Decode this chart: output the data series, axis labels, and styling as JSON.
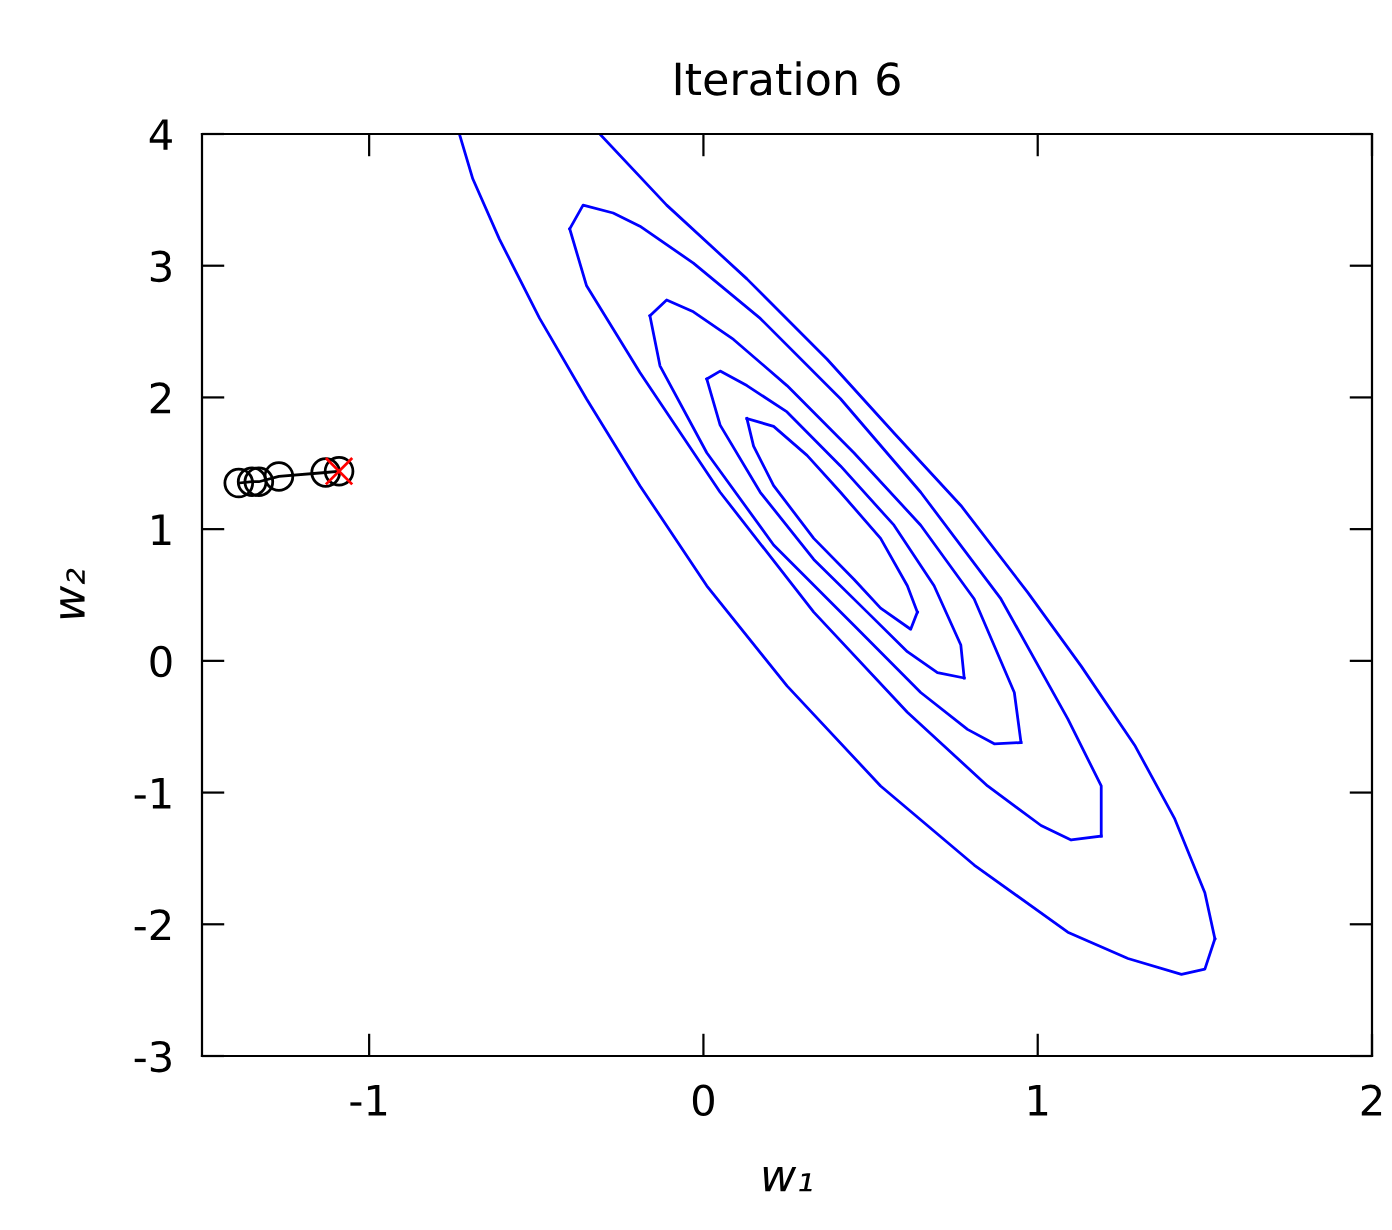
{
  "chart_data": {
    "type": "line",
    "title": "Iteration 6",
    "xlabel": "w₁",
    "ylabel": "w₂",
    "xlim": [
      -1.5,
      2
    ],
    "ylim": [
      -3,
      4
    ],
    "xticks": [
      -1,
      0,
      1,
      2
    ],
    "yticks": [
      -3,
      -2,
      -1,
      0,
      1,
      2,
      3,
      4
    ],
    "grid": false,
    "series": [
      {
        "color": "#0000ff",
        "marker": "none",
        "x": [
          0.13,
          0.21,
          0.31,
          0.41,
          0.53,
          0.61,
          0.64
        ],
        "values": [
          1.84,
          1.78,
          1.56,
          1.28,
          0.93,
          0.57,
          0.37
        ]
      },
      {
        "color": "#0000ff",
        "marker": "none",
        "x": [
          0.64,
          0.62,
          0.53,
          0.45,
          0.33,
          0.21,
          0.15,
          0.13
        ],
        "values": [
          0.37,
          0.24,
          0.4,
          0.62,
          0.93,
          1.33,
          1.63,
          1.84
        ]
      },
      {
        "color": "#0000ff",
        "marker": "none",
        "x": [
          0.01,
          0.05,
          0.13,
          0.25,
          0.41,
          0.57,
          0.69,
          0.77,
          0.78
        ],
        "values": [
          2.14,
          2.2,
          2.09,
          1.89,
          1.48,
          1.03,
          0.57,
          0.12,
          -0.13
        ]
      },
      {
        "color": "#0000ff",
        "marker": "none",
        "x": [
          0.78,
          0.7,
          0.61,
          0.49,
          0.33,
          0.17,
          0.05,
          0.01
        ],
        "values": [
          -0.13,
          -0.09,
          0.07,
          0.37,
          0.77,
          1.28,
          1.79,
          2.14
        ]
      },
      {
        "color": "#0000ff",
        "marker": "none",
        "x": [
          -0.16,
          -0.11,
          -0.03,
          0.09,
          0.25,
          0.45,
          0.65,
          0.81,
          0.93,
          0.95
        ],
        "values": [
          2.62,
          2.74,
          2.65,
          2.44,
          2.09,
          1.58,
          1.03,
          0.47,
          -0.24,
          -0.62
        ]
      },
      {
        "color": "#0000ff",
        "marker": "none",
        "x": [
          0.95,
          0.87,
          0.79,
          0.65,
          0.45,
          0.21,
          0.01,
          -0.13,
          -0.16
        ],
        "values": [
          -0.62,
          -0.63,
          -0.52,
          -0.24,
          0.27,
          0.88,
          1.58,
          2.24,
          2.62
        ]
      },
      {
        "color": "#0000ff",
        "marker": "none",
        "x": [
          -0.4,
          -0.36,
          -0.27,
          -0.19,
          -0.03,
          0.17,
          0.41,
          0.65,
          0.89,
          1.09,
          1.19,
          1.19
        ],
        "values": [
          3.28,
          3.46,
          3.4,
          3.3,
          3.02,
          2.6,
          1.99,
          1.28,
          0.47,
          -0.44,
          -0.95,
          -1.33
        ]
      },
      {
        "color": "#0000ff",
        "marker": "none",
        "x": [
          1.19,
          1.1,
          1.01,
          0.85,
          0.61,
          0.33,
          0.05,
          -0.19,
          -0.35,
          -0.4
        ],
        "values": [
          -1.33,
          -1.36,
          -1.25,
          -0.95,
          -0.39,
          0.37,
          1.28,
          2.19,
          2.85,
          3.28
        ]
      },
      {
        "color": "#0000ff",
        "marker": "none",
        "x": [
          -0.73,
          -0.69,
          -0.61,
          -0.49,
          -0.35,
          -0.19,
          0.01,
          0.25,
          0.53,
          0.81,
          1.09,
          1.27,
          1.43,
          1.5,
          1.53
        ],
        "values": [
          4.0,
          3.66,
          3.2,
          2.6,
          1.99,
          1.33,
          0.57,
          -0.19,
          -0.95,
          -1.55,
          -2.06,
          -2.26,
          -2.38,
          -2.34,
          -2.11
        ]
      },
      {
        "color": "#0000ff",
        "marker": "none",
        "x": [
          1.53,
          1.5,
          1.41,
          1.29,
          1.13,
          0.97,
          0.77,
          0.57,
          0.37,
          0.13,
          -0.11,
          -0.31
        ],
        "values": [
          -2.11,
          -1.76,
          -1.2,
          -0.64,
          -0.04,
          0.52,
          1.18,
          1.73,
          2.29,
          2.9,
          3.46,
          4.0
        ]
      },
      {
        "color": "#000000",
        "marker": "circle",
        "x": [
          -1.39,
          -1.35,
          -1.33,
          -1.27,
          -1.13,
          -1.09
        ],
        "values": [
          1.35,
          1.36,
          1.36,
          1.4,
          1.43,
          1.44
        ]
      },
      {
        "type": "scatter",
        "color": "#ff0000",
        "marker": "cross",
        "x": [
          -1.09
        ],
        "values": [
          1.44
        ]
      }
    ]
  }
}
